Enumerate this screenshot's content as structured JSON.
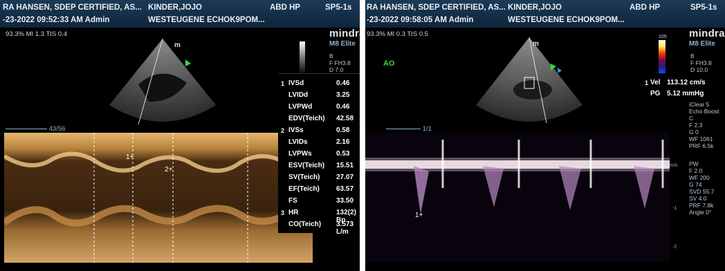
{
  "left": {
    "header": {
      "line1_left": "RA HANSEN, SDEP CERTIFIED, AS...",
      "line1_mid": "KINDER,JOJO",
      "line1_exam": "ABD HP",
      "line1_probe": "SP5-1s",
      "line2_left": "-23-2022 09:52:33 AM Admin",
      "line2_mid": "WESTEUGENE ECHOK9POM..."
    },
    "power_line": "93.3% MI 1.3 TIS 0.4",
    "brand": "mindra",
    "model": "M8 Elite",
    "params": "B\nF FH3.8\nD 7.0",
    "depth_marker": "43/56",
    "cursor_labels": [
      "1",
      "2"
    ],
    "measurements": [
      {
        "group": "1",
        "label": "IVSd",
        "value": "0.46"
      },
      {
        "group": "",
        "label": "LVIDd",
        "value": "3.25"
      },
      {
        "group": "",
        "label": "LVPWd",
        "value": "0.46"
      },
      {
        "group": "",
        "label": "EDV(Teich)",
        "value": "42.58"
      },
      {
        "group": "2",
        "label": "IVSs",
        "value": "0.58"
      },
      {
        "group": "",
        "label": "LVIDs",
        "value": "2.16"
      },
      {
        "group": "",
        "label": "LVPWs",
        "value": "0.53"
      },
      {
        "group": "",
        "label": "ESV(Teich)",
        "value": "15.51"
      },
      {
        "group": "",
        "label": "SV(Teich)",
        "value": "27.07"
      },
      {
        "group": "",
        "label": "EF(Teich)",
        "value": "63.57"
      },
      {
        "group": "",
        "label": "FS",
        "value": "33.50"
      },
      {
        "group": "3",
        "label": "HR",
        "value": "132(2) Bp"
      },
      {
        "group": "",
        "label": "CO(Teich)",
        "value": "3.573 L/m"
      }
    ]
  },
  "right": {
    "header": {
      "line1_left": "RA HANSEN, SDEP CERTIFIED, AS...",
      "line1_mid": "KINDER,JOJO",
      "line1_exam": "ABD HP",
      "line1_probe": "SP5-1s",
      "line2_left": "-23-2022 09:58:05 AM Admin",
      "line2_mid": "WESTEUGENE ECHOK9POM..."
    },
    "power_line": "93.3% MI 0.3 TIS 0.5",
    "brand": "mindra",
    "model": "M8 Elite",
    "colorbar_top": "105",
    "ao_label": "AO",
    "params_top": "B\nF FH3.8\nD 10.0",
    "velocity": {
      "group": "1",
      "vel_label": "Vel",
      "vel_value": "113.12 cm/s",
      "pg_label": "PG",
      "pg_value": "5.12 mmHg"
    },
    "params_mid": "iClear 5\nEcho Boost\nC\nF 2.3\nG 0\nWF 1061\nPRF 6.5k",
    "params_pw": "PW\nF 2.0\nWF 200\nG 74\nSVD 55.7\nSV 4.0\nPRF 7.8k\nAngle 0°",
    "scale_unit": "m/s",
    "scale_ticks": [
      "-1",
      "-2"
    ],
    "cursor_label": "1",
    "depth_marker": "1/1"
  }
}
